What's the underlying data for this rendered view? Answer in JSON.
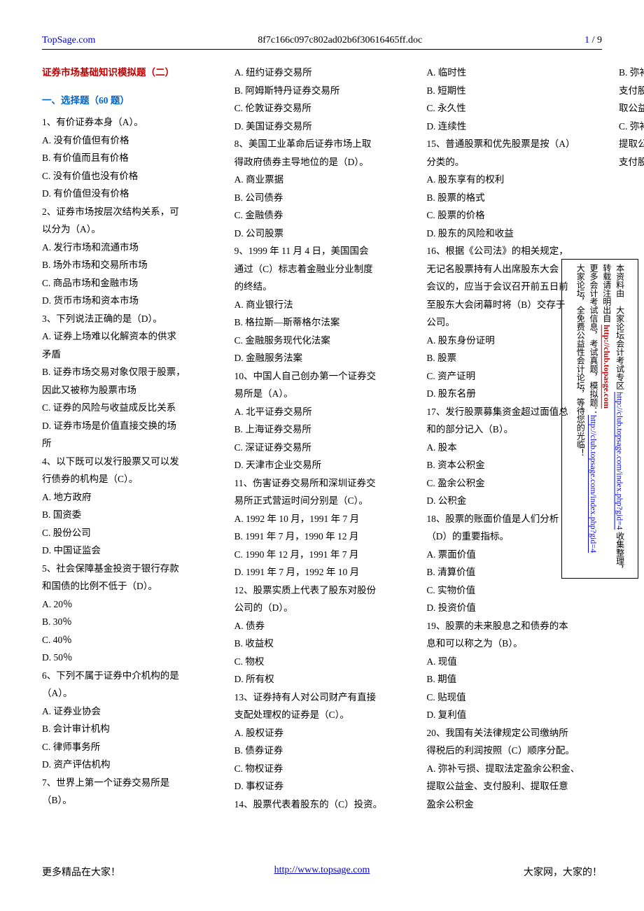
{
  "header": {
    "left": "TopSage.com",
    "center": "8f7c166c097c802ad02b6f30616465ff.doc",
    "page_current": "1",
    "page_sep": " / ",
    "page_total": "9"
  },
  "title": "证券市场基础知识模拟题（二）",
  "section_head": "一、选择题（60 题）",
  "lines": [
    "1、有价证券本身（A）。",
    "A. 没有价值但有价格",
    "B. 有价值而且有价格",
    "C. 没有价值也没有价格",
    "D. 有价值但没有价格",
    "2、证券市场按层次结构关系，可",
    "以分为（A）。",
    "A. 发行市场和流通市场",
    "B. 场外市场和交易所市场",
    "C. 商品市场和金融市场",
    "D. 货币市场和资本市场",
    "3、下列说法正确的是（D）。",
    "A. 证券上场难以化解资本的供求",
    "矛盾",
    "B. 证券市场交易对象仅限于股票，",
    "因此又被称为股票市场",
    "C. 证券的风险与收益成反比关系",
    "D. 证券市场是价值直接交换的场",
    "所",
    "4、以下既可以发行股票又可以发",
    "行债券的机构是（C）。",
    "A. 地方政府",
    "B. 国资委",
    "C. 股份公司",
    "D. 中国证监会",
    "5、社会保障基金投资于银行存款",
    "和国债的比例不低于（D）。",
    "A. 20％",
    "B. 30％",
    "C. 40％",
    "D. 50％",
    "6、下列不属于证券中介机构的是",
    "（A）。",
    "A. 证券业协会",
    "B. 会计审计机构",
    "C. 律师事务所",
    "D. 资产评估机构",
    "7、世界上第一个证券交易所是",
    "（B）。",
    "A. 纽约证券交易所",
    "B. 阿姆斯特丹证券交易所",
    "C. 伦敦证券交易所",
    "D. 美国证券交易所",
    "8、美国工业革命后证券市场上取",
    "得政府债券主导地位的是（D）。",
    "A. 商业票据",
    "B. 公司债券",
    "C. 金融债券",
    "D. 公司股票",
    "9、1999 年 11 月 4 日，美国国会",
    "通过（C）标志着金融业分业制度",
    "的终结。",
    "A. 商业银行法",
    "B. 格拉斯—斯蒂格尔法案",
    "C. 金融服务现代化法案",
    "D. 金融服务法案",
    "10、中国人自己创办第一个证券交",
    "易所是（A）。",
    "A. 北平证券交易所",
    "B. 上海证券交易所",
    "C. 深证证券交易所",
    "D. 天津市企业交易所",
    "11、伤害证券交易所和深圳证券交",
    "易所正式营运时间分别是（C）。",
    "A. 1992 年 10 月，1991 年 7 月",
    "B. 1991 年 7 月，1990 年 12 月",
    "C. 1990 年 12 月，1991 年 7 月",
    "D. 1991 年 7 月，1992 年 10 月",
    "12、股票实质上代表了股东对股份",
    "公司的（D）。",
    "A. 债券",
    "B. 收益权",
    "C. 物权",
    "D. 所有权",
    "13、证券持有人对公司财产有直接",
    "支配处理权的证券是（C）。",
    "A. 股权证券",
    "B. 债券证券",
    "C. 物权证券",
    "D. 事权证券",
    "14、股票代表着股东的（C）投资。",
    "A. 临时性",
    "B. 短期性",
    "C. 永久性",
    "D. 连续性",
    "15、普通股票和优先股票是按（A）",
    "分类的。",
    "A. 股东享有的权利",
    "B. 股票的格式",
    "C. 股票的价格",
    "D. 股东的风险和收益",
    "16、根据《公司法》的相关规定，",
    "无记名股票持有人出席股东大会",
    "会议的，应当于会议召开前五日前",
    "至股东大会闭幕时将（B）交存于",
    "公司。",
    "A. 股东身份证明",
    "B. 股票",
    "C. 资产证明",
    "D. 股东名册",
    "17、发行股票募集资金超过面值总",
    "和的部分记入（B）。",
    "A. 股本",
    "B. 资本公积金",
    "C. 盈余公积金",
    "D. 公积金",
    "18、股票的账面价值是人们分析",
    "（D）的重要指标。",
    "A. 票面价值",
    "B. 清算价值",
    "C. 实物价值",
    "D. 投资价值",
    "19、股票的未来股息之和债券的本",
    "息和可以称之为（B）。",
    "A. 现值",
    "B. 期值",
    "C. 贴现值",
    "D. 复利值",
    "20、我国有关法律规定公司缴纳所",
    "得税后的利润按照（C）顺序分配。",
    "A. 弥补亏损、提取法定盈余公积金、",
    "提取公益金、支付股利、提取任意",
    "盈余公积金",
    "B. 弥补亏损、提取任意盈余公积金、",
    "支付股利、提取法定盈余公积金提",
    "取公益金",
    "C. 弥补亏损、提取法定盈余公积金、",
    "提取公益金、提取任意盈余公积金、",
    "支付股利"
  ],
  "sidebar": {
    "c1a": "本资料由　大家论坛会计考试专区 ",
    "c1b": "http://club.topsage.com/index.php?gid=4",
    "c1c": " 收集整理，",
    "c2a": "转载请注明出自 ",
    "c2b": "http://club.topasge.com",
    "c3a": "更多会计考试信息，考试真题，模拟题：",
    "c3b": "http://club.topsage.com/index.php?gid=4",
    "c4": "大家论坛，全免费公益性会计论坛，等待您的光临！"
  },
  "footer": {
    "left": "更多精品在大家！",
    "center": "http://www.topsage.com",
    "right": "大家网，大家的！"
  }
}
